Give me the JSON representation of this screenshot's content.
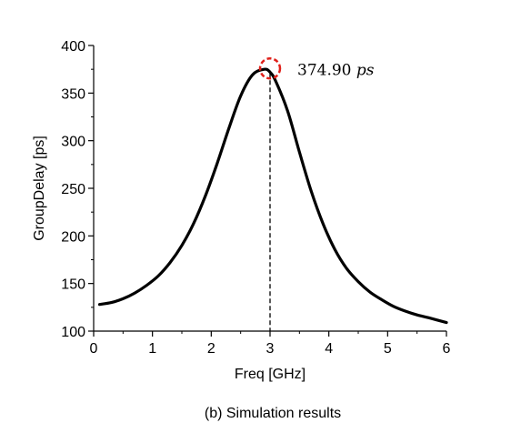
{
  "chart_data": {
    "type": "line",
    "xlabel": "Freq [GHz]",
    "ylabel": "GroupDelay [ps]",
    "caption": "(b) Simulation results",
    "xlim": [
      0,
      6
    ],
    "ylim": [
      100,
      400
    ],
    "xticks": [
      "0",
      "1",
      "2",
      "3",
      "4",
      "5",
      "6"
    ],
    "yticks": [
      "100",
      "150",
      "200",
      "250",
      "300",
      "350",
      "400"
    ],
    "grid": false,
    "series": [
      {
        "color": "#000000",
        "x": [
          0.1,
          0.3,
          0.5,
          0.7,
          0.9,
          1.1,
          1.3,
          1.5,
          1.7,
          1.9,
          2.1,
          2.3,
          2.5,
          2.7,
          2.9,
          3.0,
          3.1,
          3.3,
          3.5,
          3.7,
          3.9,
          4.1,
          4.3,
          4.5,
          4.7,
          4.9,
          5.1,
          5.3,
          5.5,
          5.7,
          6.0
        ],
        "y": [
          128,
          130,
          134,
          140,
          148,
          158,
          172,
          190,
          213,
          242,
          276,
          313,
          347,
          369,
          375,
          372,
          362,
          331,
          288,
          247,
          213,
          186,
          166,
          152,
          141,
          133,
          126,
          121,
          117,
          114,
          109
        ]
      }
    ],
    "annotation": {
      "x": 3.0,
      "y": 374.9,
      "value": "374.90",
      "unit": "ps",
      "marker_color": "#e0201a"
    }
  }
}
